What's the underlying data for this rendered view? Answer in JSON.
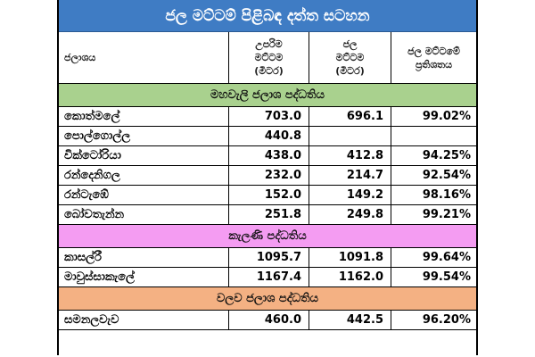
{
  "title": "ජල මට්ටම් පිළිබඳ දත්ත සටහන",
  "headers": {
    "reservoir": "ජලාශය",
    "max_level": "උපරිම\nමට්ටම\n(මීටර)",
    "water_level": "ජල\nමට්ටම\n(මීටර)",
    "percentage": "ජල මට්ටමේ\nප්‍රතිශතය"
  },
  "sections": [
    {
      "name": "මහවැලි ජලාශ පද්ධතිය",
      "color": "#a9d18e",
      "rows": [
        {
          "name": "කොත්මලේ",
          "max": "703.0",
          "level": "696.1",
          "pct": "99.02%"
        },
        {
          "name": "පොල්ගොල්ල",
          "max": "440.8",
          "level": "",
          "pct": ""
        },
        {
          "name": "වික්ටෝරියා",
          "max": "438.0",
          "level": "412.8",
          "pct": "94.25%"
        },
        {
          "name": "රන්දෙනිගල",
          "max": "232.0",
          "level": "214.7",
          "pct": "92.54%"
        },
        {
          "name": "රන්ටැඹේ",
          "max": "152.0",
          "level": "149.2",
          "pct": "98.16%"
        },
        {
          "name": "බෝවතැන්න",
          "max": "251.8",
          "level": "249.8",
          "pct": "99.21%"
        }
      ]
    },
    {
      "name": "කැලණි පද්ධතිය",
      "color": "#f49cf2",
      "rows": [
        {
          "name": "කාසල්රී",
          "max": "1095.7",
          "level": "1091.8",
          "pct": "99.64%"
        },
        {
          "name": "මාවුස්සාකැලේ",
          "max": "1167.4",
          "level": "1162.0",
          "pct": "99.54%"
        }
      ]
    },
    {
      "name": "වලව ජලාශ පද්ධතිය",
      "color": "#f4b183",
      "rows": [
        {
          "name": "සමනලවැව",
          "max": "460.0",
          "level": "442.5",
          "pct": "96.20%"
        }
      ]
    }
  ]
}
